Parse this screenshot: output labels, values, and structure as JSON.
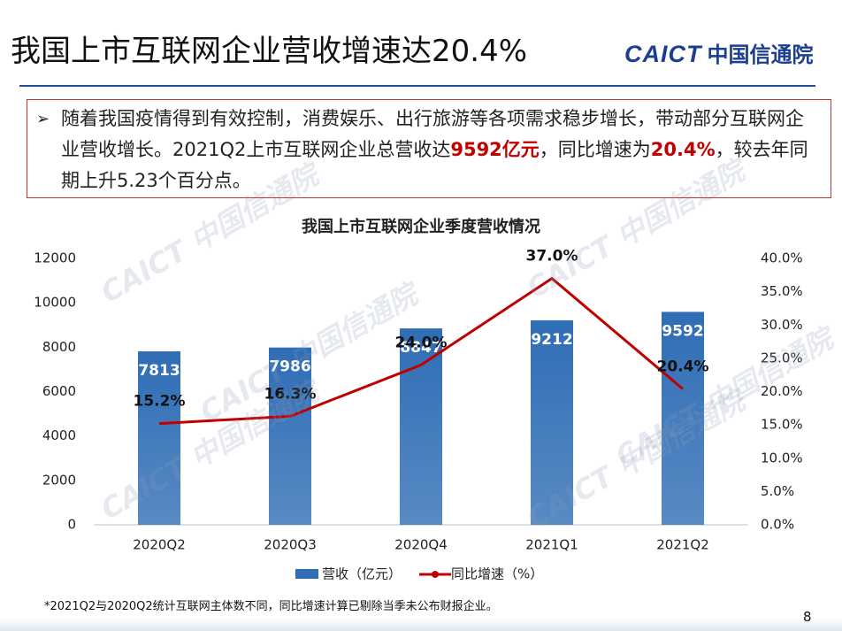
{
  "header": {
    "title": "我国上市互联网企业营收增速达20.4%",
    "logo_mark": "CAICT",
    "logo_name": "中国信通院"
  },
  "bullet": {
    "parts": [
      {
        "text": "随着我国疫情得到有效控制，消费娱乐、出行旅游等各项需求稳步增长，带动部分互联网企业营收增长。2021Q2上市互联网企业总营收达",
        "emphasis": false
      },
      {
        "text": "9592亿元",
        "emphasis": true
      },
      {
        "text": "，同比增速为",
        "emphasis": false
      },
      {
        "text": "20.4%",
        "emphasis": true
      },
      {
        "text": "，较去年同期上升5.23个百分点。",
        "emphasis": false
      }
    ]
  },
  "watermark": "CAICT 中国信通院",
  "chart_data": {
    "type": "bar",
    "title": "我国上市互联网企业季度营收情况",
    "categories": [
      "2020Q2",
      "2020Q3",
      "2020Q4",
      "2021Q1",
      "2021Q2"
    ],
    "series": [
      {
        "name": "营收（亿元）",
        "type": "bar",
        "color": "#2f6db5",
        "values": [
          7813,
          7986,
          8847,
          9212,
          9592
        ]
      },
      {
        "name": "同比增速（%）",
        "type": "line",
        "axis": "y2",
        "color": "#c00000",
        "values": [
          15.2,
          16.3,
          24.0,
          37.0,
          20.4
        ],
        "value_labels": [
          "15.2%",
          "16.3%",
          "24.0%",
          "37.0%",
          "20.4%"
        ]
      }
    ],
    "ylim": [
      0,
      12000
    ],
    "yticks": [
      0,
      2000,
      4000,
      6000,
      8000,
      10000,
      12000
    ],
    "y2lim": [
      0,
      40
    ],
    "y2ticks": [
      {
        "value": 0,
        "label": "0.0%"
      },
      {
        "value": 5,
        "label": "5.0%"
      },
      {
        "value": 10,
        "label": "10.0%"
      },
      {
        "value": 15,
        "label": "15.0%"
      },
      {
        "value": 20,
        "label": "20.0%"
      },
      {
        "value": 25,
        "label": "25.0%"
      },
      {
        "value": 30,
        "label": "30.0%"
      },
      {
        "value": 35,
        "label": "35.0%"
      },
      {
        "value": 40,
        "label": "40.0%"
      }
    ],
    "grid": false,
    "legend": "bottom"
  },
  "footnote": "*2021Q2与2020Q2统计互联网主体数不同，同比增速计算已剔除当季未公布财报企业。",
  "page_number": "8"
}
